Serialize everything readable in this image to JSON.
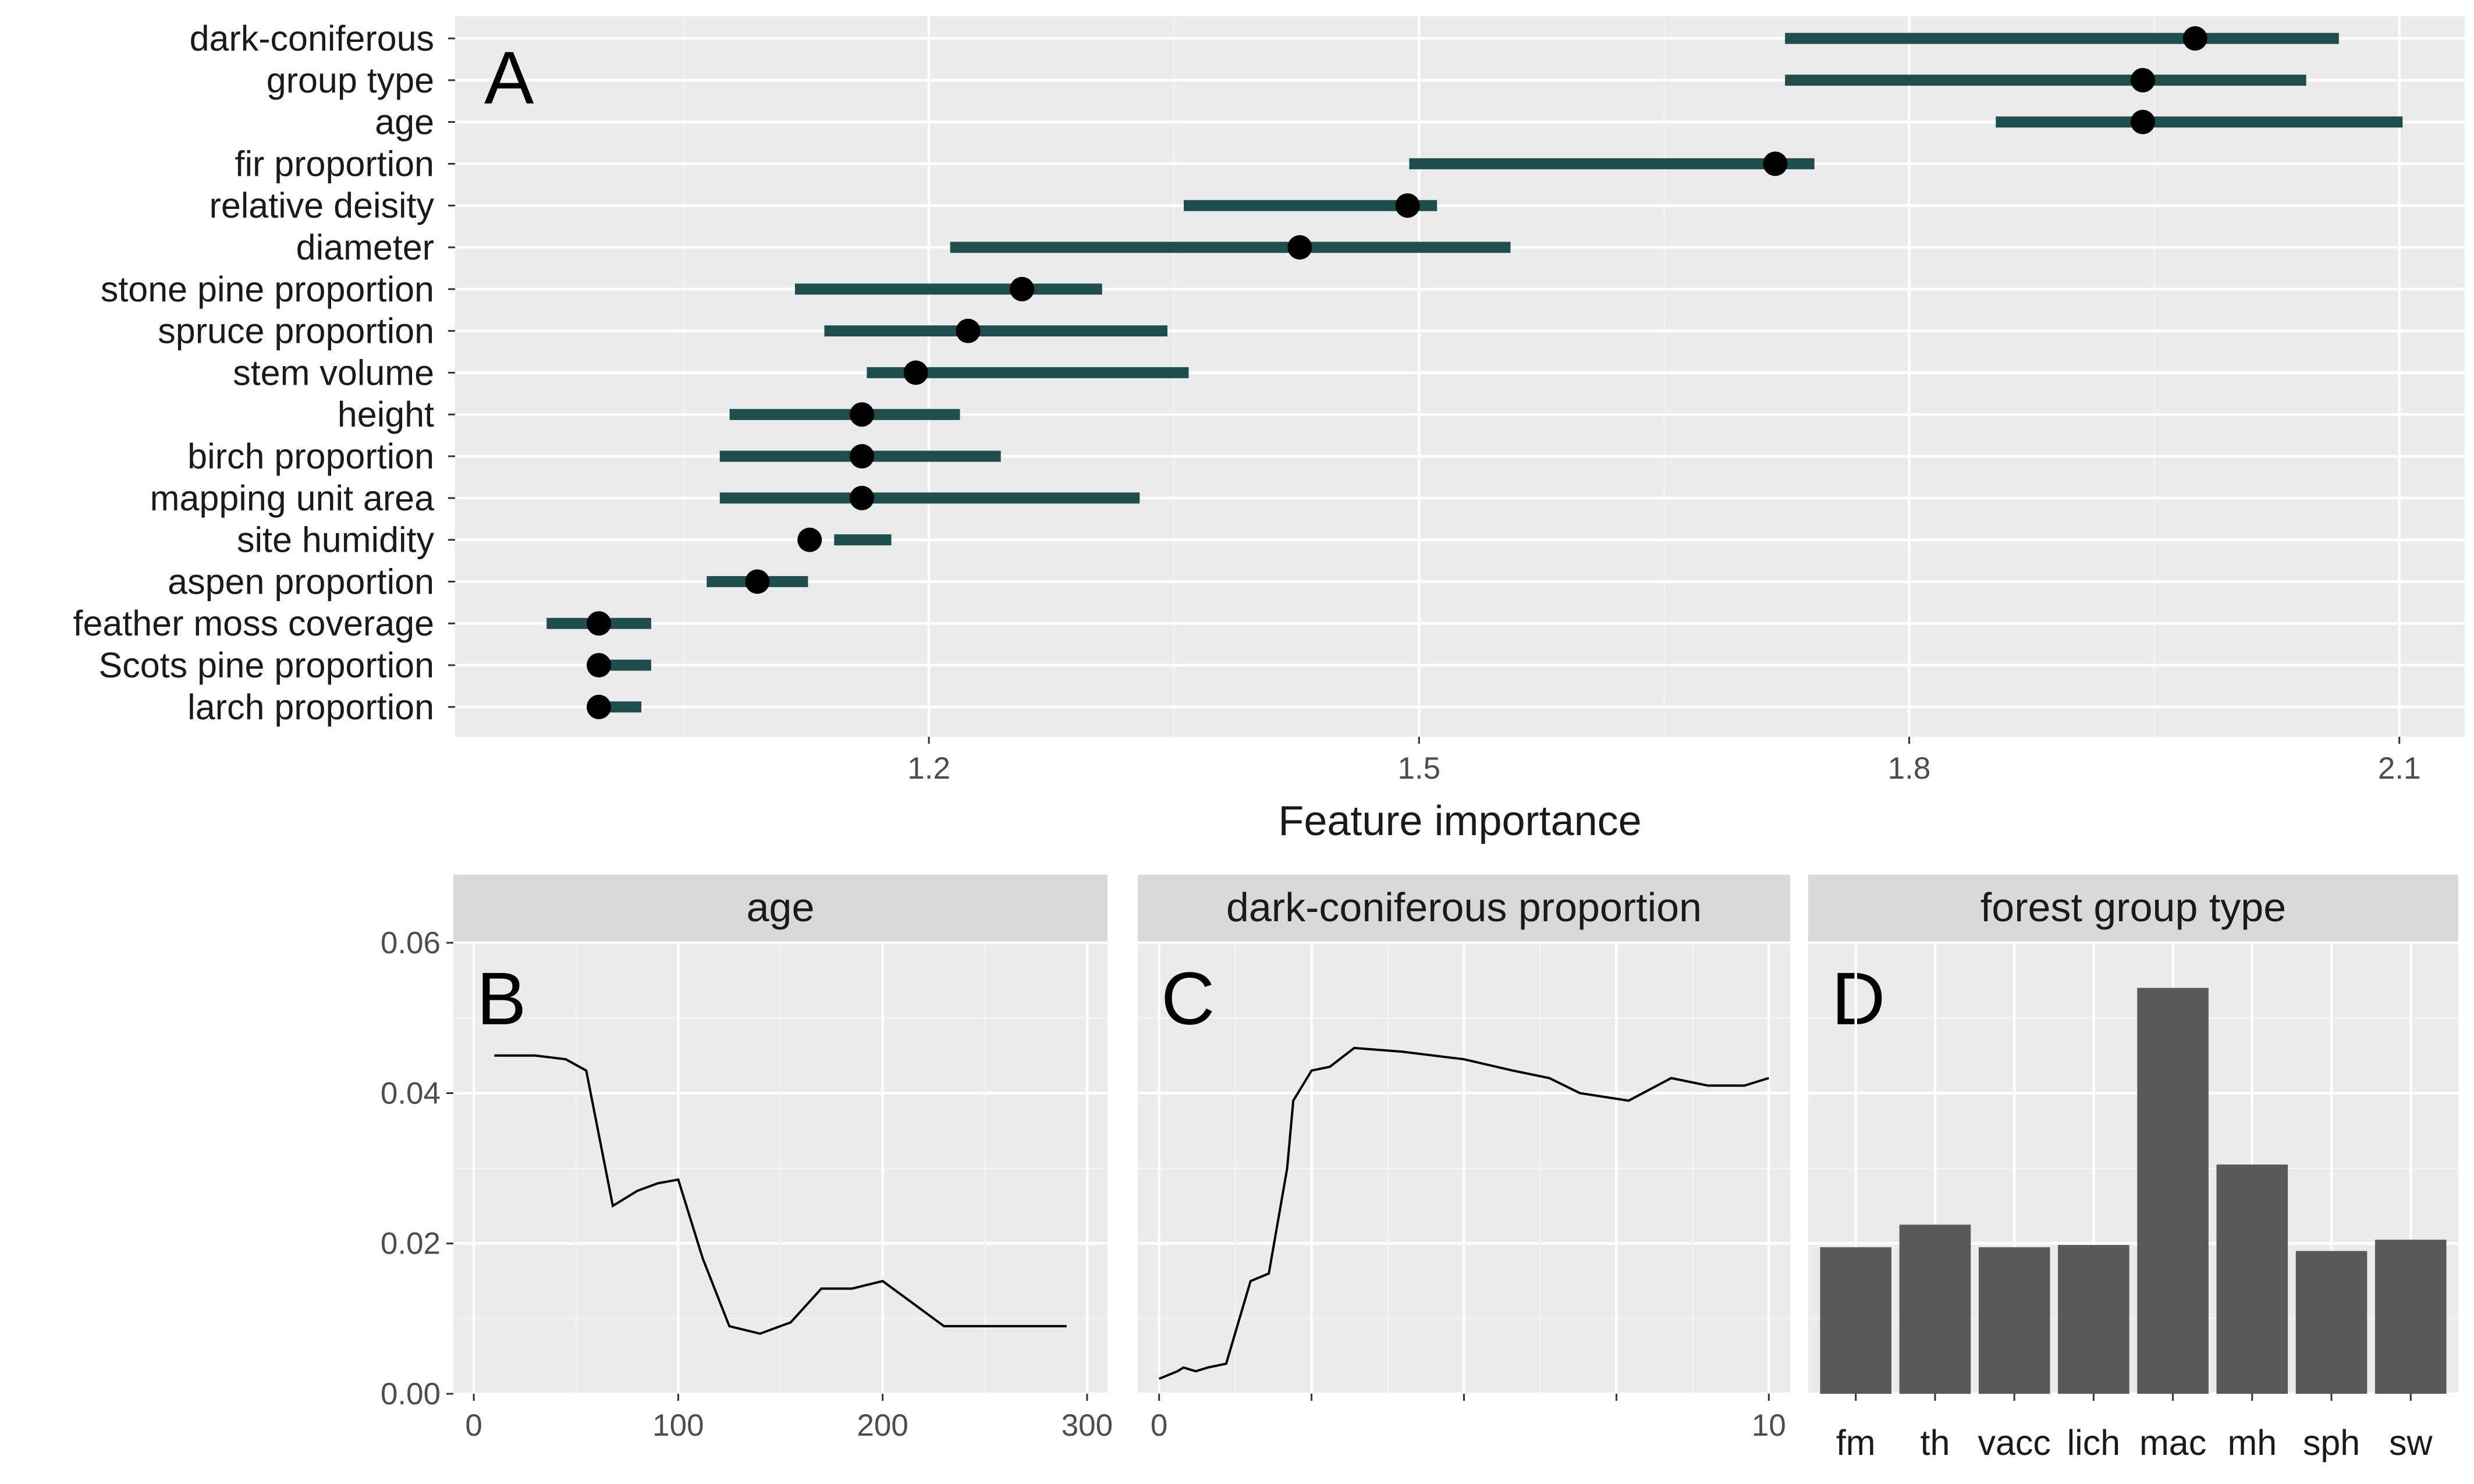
{
  "chart_data": [
    {
      "type": "dot-interval",
      "panel_label": "A",
      "xlabel": "Feature importance",
      "xlim": [
        0.91,
        2.14
      ],
      "xticks": [
        1.2,
        1.5,
        1.8,
        2.1
      ],
      "xtick_labels": [
        "1.2",
        "1.5",
        "1.8",
        "2.1"
      ],
      "categories": [
        "dark-coniferous",
        "group type",
        "age",
        "fir proportion",
        "relative deisity",
        "diameter",
        "stone pine proportion",
        "spruce proportion",
        "stem volume",
        "height",
        "birch proportion",
        "mapping unit area",
        "site humidity",
        "aspen proportion",
        "feather moss coverage",
        "Scots pine proportion",
        "larch proportion"
      ],
      "estimate": [
        1.975,
        1.943,
        1.943,
        1.718,
        1.493,
        1.427,
        1.257,
        1.224,
        1.192,
        1.159,
        1.159,
        1.159,
        1.127,
        1.095,
        0.998,
        0.998,
        0.998
      ],
      "lower": [
        1.724,
        1.724,
        1.853,
        1.494,
        1.356,
        1.213,
        1.118,
        1.136,
        1.162,
        1.078,
        1.072,
        1.072,
        1.142,
        1.064,
        0.966,
        0.998,
        0.998
      ],
      "upper": [
        2.063,
        2.043,
        2.102,
        1.742,
        1.511,
        1.556,
        1.306,
        1.346,
        1.359,
        1.219,
        1.244,
        1.329,
        1.177,
        1.126,
        1.03,
        1.03,
        1.024
      ]
    },
    {
      "type": "line",
      "panel_label": "B",
      "strip_title": "age",
      "x": [
        10,
        30,
        45,
        55,
        68,
        80,
        90,
        100,
        112,
        125,
        140,
        155,
        170,
        185,
        200,
        215,
        230,
        250,
        270,
        290
      ],
      "y": [
        0.045,
        0.045,
        0.0445,
        0.043,
        0.025,
        0.027,
        0.028,
        0.0285,
        0.018,
        0.009,
        0.008,
        0.0095,
        0.014,
        0.014,
        0.015,
        0.012,
        0.009,
        0.009,
        0.009,
        0.009
      ],
      "xlim": [
        0,
        300
      ],
      "xticks": [
        0,
        100,
        200,
        300
      ],
      "xtick_labels": [
        "0",
        "100",
        "200",
        "300"
      ],
      "ylim": [
        0.0,
        0.06
      ],
      "yticks": [
        0.0,
        0.02,
        0.04,
        0.06
      ],
      "ytick_labels": [
        "0.00",
        "0.02",
        "0.04",
        "0.06"
      ]
    },
    {
      "type": "line",
      "panel_label": "C",
      "strip_title": "dark-coniferous proportion",
      "x": [
        0,
        0.3,
        0.4,
        0.6,
        0.8,
        1.1,
        1.5,
        1.8,
        2.1,
        2.2,
        2.5,
        2.8,
        3.2,
        4.0,
        5.0,
        5.8,
        6.4,
        6.9,
        7.7,
        8.4,
        9.0,
        9.6,
        10.0
      ],
      "y": [
        0.002,
        0.003,
        0.0035,
        0.003,
        0.0035,
        0.004,
        0.015,
        0.016,
        0.03,
        0.039,
        0.043,
        0.0435,
        0.046,
        0.0455,
        0.0445,
        0.043,
        0.042,
        0.04,
        0.039,
        0.042,
        0.041,
        0.041,
        0.042
      ],
      "xlim": [
        0,
        10
      ],
      "xtick_labels": [
        "0",
        "10"
      ],
      "ylim": [
        0.0,
        0.06
      ]
    },
    {
      "type": "bar",
      "panel_label": "D",
      "strip_title": "forest group type",
      "categories": [
        "fm",
        "th",
        "vacc",
        "lich",
        "mac",
        "mh",
        "sph",
        "sw"
      ],
      "values": [
        0.0195,
        0.0225,
        0.0195,
        0.0198,
        0.054,
        0.0305,
        0.019,
        0.0205
      ],
      "ylim": [
        0.0,
        0.06
      ]
    }
  ]
}
